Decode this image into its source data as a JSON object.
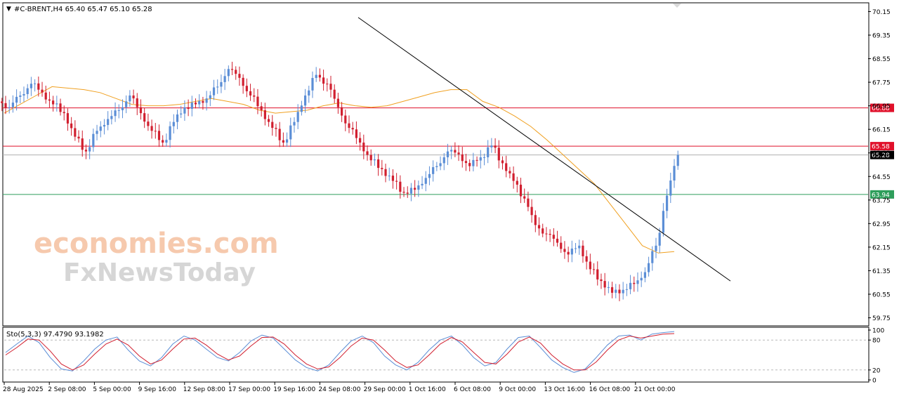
{
  "header": {
    "symbol_line": "#C-BRENT,H4  65.40 65.47 65.10 65.28",
    "menu_glyph": "▼"
  },
  "watermark": {
    "line1": "economies.com",
    "line2": "FxNewsToday"
  },
  "chart_data": [
    {
      "type": "candlestick",
      "symbol": "#C-BRENT",
      "timeframe": "H4",
      "ohlc_readout": {
        "open": 65.4,
        "high": 65.47,
        "low": 65.1,
        "close": 65.28
      },
      "ylim": [
        59.5,
        70.4
      ],
      "yticks": [
        "70.15",
        "69.35",
        "68.55",
        "67.75",
        "66.95",
        "66.15",
        "65.35",
        "64.55",
        "63.75",
        "62.95",
        "62.15",
        "61.35",
        "60.55",
        "59.75"
      ],
      "grid": false,
      "xticks": [
        "28 Aug 2025",
        "2 Sep 08:00",
        "5 Sep 00:00",
        "9 Sep 16:00",
        "12 Sep 08:00",
        "17 Sep 00:00",
        "19 Sep 16:00",
        "24 Sep 08:00",
        "29 Sep 00:00",
        "1 Oct 16:00",
        "6 Oct 08:00",
        "9 Oct 00:00",
        "13 Oct 16:00",
        "16 Oct 08:00",
        "21 Oct 00:00"
      ],
      "horizontal_lines": [
        {
          "price": 66.88,
          "label": "66.88",
          "color": "#e0102a"
        },
        {
          "price": 65.58,
          "label": "65.58",
          "color": "#e0102a"
        },
        {
          "price": 65.28,
          "label": "65.28",
          "color": "#b0b0b0"
        },
        {
          "price": 63.94,
          "label": "63.94",
          "color": "#2e9e5b"
        }
      ],
      "trendline": {
        "from_price": 69.95,
        "to_price": 61.0,
        "color": "#000000",
        "description": "descending trendline from the 24 Sep peak"
      },
      "moving_average": {
        "color": "#f0a020",
        "points": [
          66.7,
          67.0,
          67.3,
          67.6,
          67.55,
          67.5,
          67.4,
          67.2,
          67.0,
          66.95,
          66.95,
          67.0,
          67.1,
          67.2,
          67.1,
          67.0,
          66.8,
          66.7,
          66.75,
          66.8,
          66.95,
          67.05,
          66.95,
          66.9,
          66.95,
          67.1,
          67.25,
          67.4,
          67.5,
          67.5,
          67.1,
          66.9,
          66.6,
          66.25,
          65.8,
          65.3,
          64.8,
          64.3,
          63.6,
          62.9,
          62.2,
          61.95,
          62.0
        ]
      },
      "closes": [
        66.9,
        67.3,
        67.7,
        67.4,
        67.0,
        66.7,
        65.9,
        65.4,
        66.1,
        66.5,
        66.8,
        67.3,
        66.7,
        66.1,
        65.7,
        66.4,
        66.9,
        67.0,
        67.2,
        67.6,
        68.2,
        67.9,
        67.3,
        66.8,
        66.2,
        65.7,
        66.4,
        67.3,
        68.0,
        67.7,
        66.9,
        66.2,
        65.7,
        65.1,
        64.8,
        64.4,
        64.0,
        64.1,
        64.5,
        64.9,
        65.4,
        65.3,
        64.9,
        65.2,
        65.6,
        65.0,
        64.4,
        63.8,
        62.9,
        62.6,
        62.3,
        61.9,
        62.2,
        61.4,
        61.0,
        60.6,
        60.7,
        60.9,
        61.3,
        62.2,
        63.9,
        65.28
      ]
    },
    {
      "type": "line",
      "title": "Sto(5,3,3) 97.4790 93.1982",
      "ylim": [
        0,
        100
      ],
      "yticks": [
        "100",
        "80",
        "20",
        "0"
      ],
      "levels": [
        80,
        20
      ],
      "series": [
        {
          "color": "#5b8ed6",
          "values": [
            55,
            72,
            88,
            75,
            45,
            22,
            18,
            38,
            62,
            80,
            86,
            60,
            38,
            28,
            45,
            72,
            88,
            80,
            62,
            45,
            38,
            55,
            78,
            90,
            84,
            62,
            40,
            25,
            18,
            30,
            55,
            78,
            88,
            75,
            48,
            30,
            20,
            35,
            60,
            80,
            88,
            70,
            45,
            28,
            35,
            62,
            85,
            88,
            65,
            40,
            25,
            15,
            22,
            45,
            70,
            88,
            90,
            80,
            92,
            95,
            97
          ]
        },
        {
          "color": "#d11f2f",
          "values": [
            50,
            65,
            82,
            80,
            58,
            32,
            20,
            30,
            52,
            72,
            82,
            70,
            48,
            32,
            40,
            62,
            82,
            84,
            70,
            52,
            40,
            48,
            68,
            85,
            86,
            72,
            50,
            32,
            22,
            26,
            45,
            68,
            84,
            80,
            60,
            38,
            25,
            30,
            50,
            72,
            85,
            76,
            55,
            35,
            32,
            52,
            76,
            86,
            74,
            50,
            32,
            20,
            20,
            36,
            60,
            80,
            88,
            84,
            88,
            92,
            93
          ]
        }
      ]
    }
  ]
}
